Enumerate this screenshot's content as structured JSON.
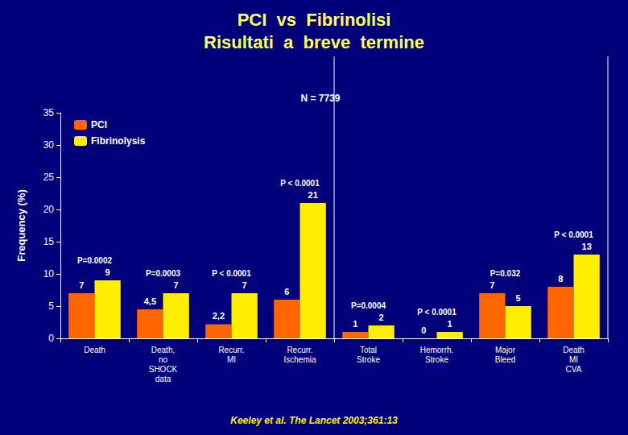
{
  "chart_data": {
    "type": "bar",
    "title": "PCI  vs  Fibrinolisi",
    "subtitle": "Risultati  a  breve  termine",
    "y_label": "Frequency (%)",
    "categories": [
      "Death",
      "Death,\nno\nSHOCK\ndata",
      "Recurr.\nMI",
      "Recurr.\nIschemia",
      "Total\nStroke",
      "Hemorrh.\nStroke",
      "Major\nBleed",
      "Death\nMI\nCVA"
    ],
    "series": [
      {
        "name": "PCI",
        "color": "#FF6600",
        "values": [
          7,
          4.5,
          2.2,
          6,
          1,
          0,
          7,
          8
        ],
        "value_labels": [
          "7",
          "4,5",
          "2,2",
          "6",
          "1",
          "0",
          "7",
          "8"
        ]
      },
      {
        "name": "Fibrinolysis",
        "color": "#FFEE00",
        "values": [
          9,
          7,
          7,
          21,
          2,
          1,
          5,
          13
        ]
      }
    ],
    "annotations": [
      "P=0.0002",
      "P=0.0003",
      "P < 0.0001",
      "P < 0.0001",
      "P=0.0004",
      "P < 0.0001",
      "P=0.032",
      "P < 0.0001",
      "N = 7739"
    ],
    "citation": "Keeley et al. The Lancet 2003;361:13",
    "ylim": [
      0,
      35
    ],
    "yticks": [
      0,
      5,
      10,
      15,
      20,
      25,
      30,
      35
    ],
    "data_labels": true,
    "legend": "upper left",
    "grid": false
  }
}
